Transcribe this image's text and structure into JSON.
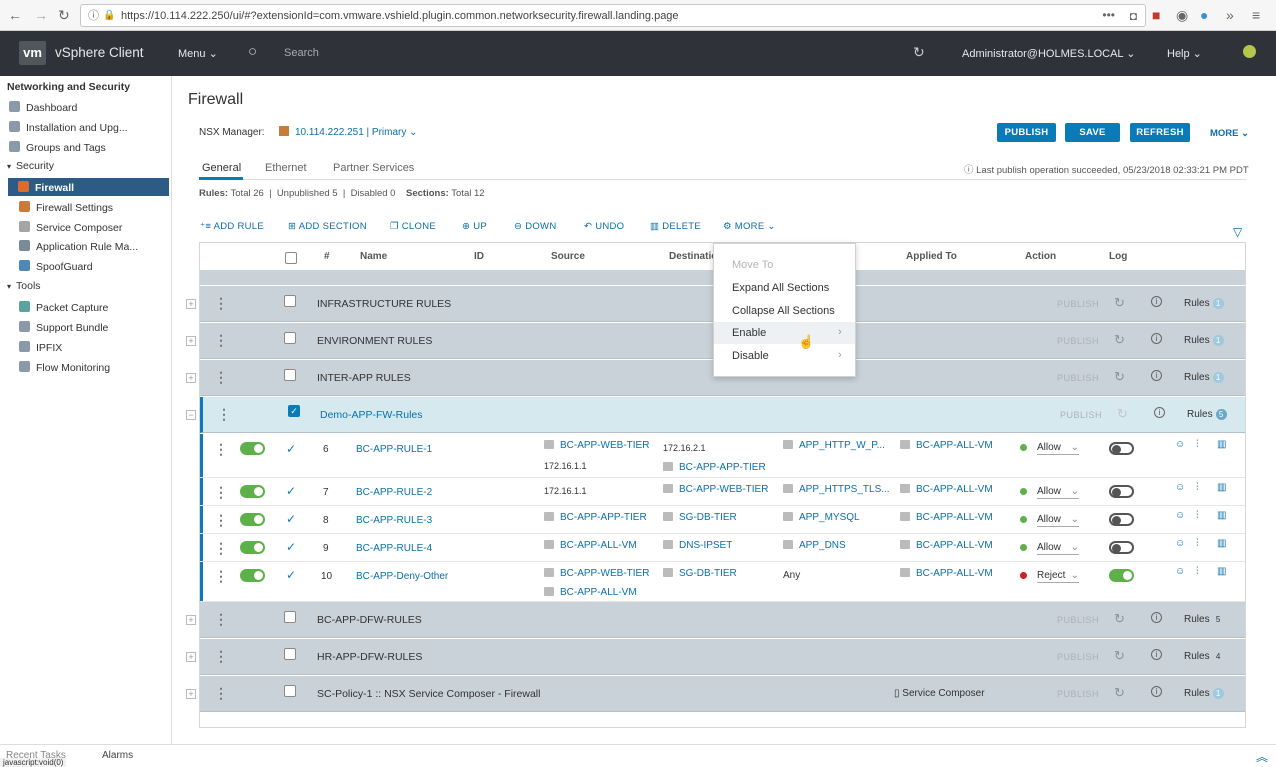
{
  "browser": {
    "url": "https://10.114.222.250/ui/#?extensionId=com.vmware.vshield.plugin.common.networksecurity.firewall.landing.page"
  },
  "header": {
    "logo": "vm",
    "app_name": "vSphere Client",
    "menu": "Menu",
    "search_placeholder": "Search",
    "user": "Administrator@HOLMES.LOCAL",
    "help": "Help"
  },
  "sidebar": {
    "title": "Networking and Security",
    "items": [
      {
        "label": "Dashboard"
      },
      {
        "label": "Installation and Upg..."
      },
      {
        "label": "Groups and Tags"
      }
    ],
    "security_group": "Security",
    "security_items": [
      {
        "label": "Firewall"
      },
      {
        "label": "Firewall Settings"
      },
      {
        "label": "Service Composer"
      },
      {
        "label": "Application Rule Ma..."
      },
      {
        "label": "SpoofGuard"
      }
    ],
    "tools_group": "Tools",
    "tools_items": [
      {
        "label": "Packet Capture"
      },
      {
        "label": "Support Bundle"
      },
      {
        "label": "IPFIX"
      },
      {
        "label": "Flow Monitoring"
      }
    ]
  },
  "page": {
    "title": "Firewall",
    "nsx_label": "NSX Manager:",
    "nsx_value": "10.114.222.251 | Primary",
    "buttons": {
      "publish": "PUBLISH",
      "save": "SAVE",
      "refresh": "REFRESH",
      "more": "MORE"
    },
    "tabs": [
      "General",
      "Ethernet",
      "Partner Services"
    ],
    "last_publish": "Last publish operation succeeded, 05/23/2018 02:33:21 PM PDT",
    "stats": {
      "rules_label": "Rules:",
      "rules_value": "Total 26  |  Unpublished 5  |  Disabled 0",
      "sections_label": "Sections:",
      "sections_value": "Total 12"
    },
    "toolbar": {
      "add_rule": "ADD RULE",
      "add_section": "ADD SECTION",
      "clone": "CLONE",
      "up": "UP",
      "down": "DOWN",
      "undo": "UNDO",
      "delete": "DELETE",
      "more": "MORE"
    }
  },
  "table": {
    "columns": {
      "num": "#",
      "name": "Name",
      "id": "ID",
      "source": "Source",
      "destination": "Destinatio",
      "applied": "Applied To",
      "action": "Action",
      "log": "Log"
    },
    "section_publish": "PUBLISH",
    "rules_word": "Rules",
    "sections": [
      {
        "name": "INFRASTRUCTURE RULES",
        "count": "1"
      },
      {
        "name": "ENVIRONMENT RULES",
        "count": "1"
      },
      {
        "name": "INTER-APP RULES",
        "count": "1"
      },
      {
        "name": "Demo-APP-FW-Rules",
        "count": "5"
      },
      {
        "name": "BC-APP-DFW-RULES",
        "count": "5"
      },
      {
        "name": "HR-APP-DFW-RULES",
        "count": "4"
      },
      {
        "name": "SC-Policy-1 :: NSX Service Composer - Firewall",
        "count": "1",
        "applied": "Service Composer"
      }
    ],
    "rules": [
      {
        "num": "6",
        "name": "BC-APP-RULE-1",
        "src1": "BC-APP-WEB-TIER",
        "src2": "172.16.1.1",
        "dst1": "172.16.2.1",
        "dst2": "BC-APP-APP-TIER",
        "svc": "APP_HTTP_W_P...",
        "applied": "BC-APP-ALL-VM",
        "action": "Allow",
        "log": false
      },
      {
        "num": "7",
        "name": "BC-APP-RULE-2",
        "src1": "172.16.1.1",
        "src2": "",
        "dst1": "BC-APP-WEB-TIER",
        "dst2": "",
        "svc": "APP_HTTPS_TLS...",
        "applied": "BC-APP-ALL-VM",
        "action": "Allow",
        "log": false
      },
      {
        "num": "8",
        "name": "BC-APP-RULE-3",
        "src1": "BC-APP-APP-TIER",
        "src2": "",
        "dst1": "SG-DB-TIER",
        "dst2": "",
        "svc": "APP_MYSQL",
        "applied": "BC-APP-ALL-VM",
        "action": "Allow",
        "log": false
      },
      {
        "num": "9",
        "name": "BC-APP-RULE-4",
        "src1": "BC-APP-ALL-VM",
        "src2": "",
        "dst1": "DNS-IPSET",
        "dst2": "",
        "svc": "APP_DNS",
        "applied": "BC-APP-ALL-VM",
        "action": "Allow",
        "log": false
      },
      {
        "num": "10",
        "name": "BC-APP-Deny-Other",
        "src1": "BC-APP-WEB-TIER",
        "src2": "BC-APP-ALL-VM",
        "dst1": "SG-DB-TIER",
        "dst2": "",
        "svc": "Any",
        "applied": "BC-APP-ALL-VM",
        "action": "Reject",
        "log": true
      }
    ]
  },
  "context_menu": {
    "items": [
      "Move To",
      "Expand All Sections",
      "Collapse All Sections",
      "Enable",
      "Disable"
    ]
  },
  "footer": {
    "tasks": "Recent Tasks",
    "alarms": "Alarms",
    "status": "javascript:void(0)"
  },
  "colors": {
    "accent": "#0b7ab8",
    "header": "#2f3238",
    "section": "#c9d1d9",
    "allow": "#5db04a",
    "reject": "#cc2222"
  }
}
